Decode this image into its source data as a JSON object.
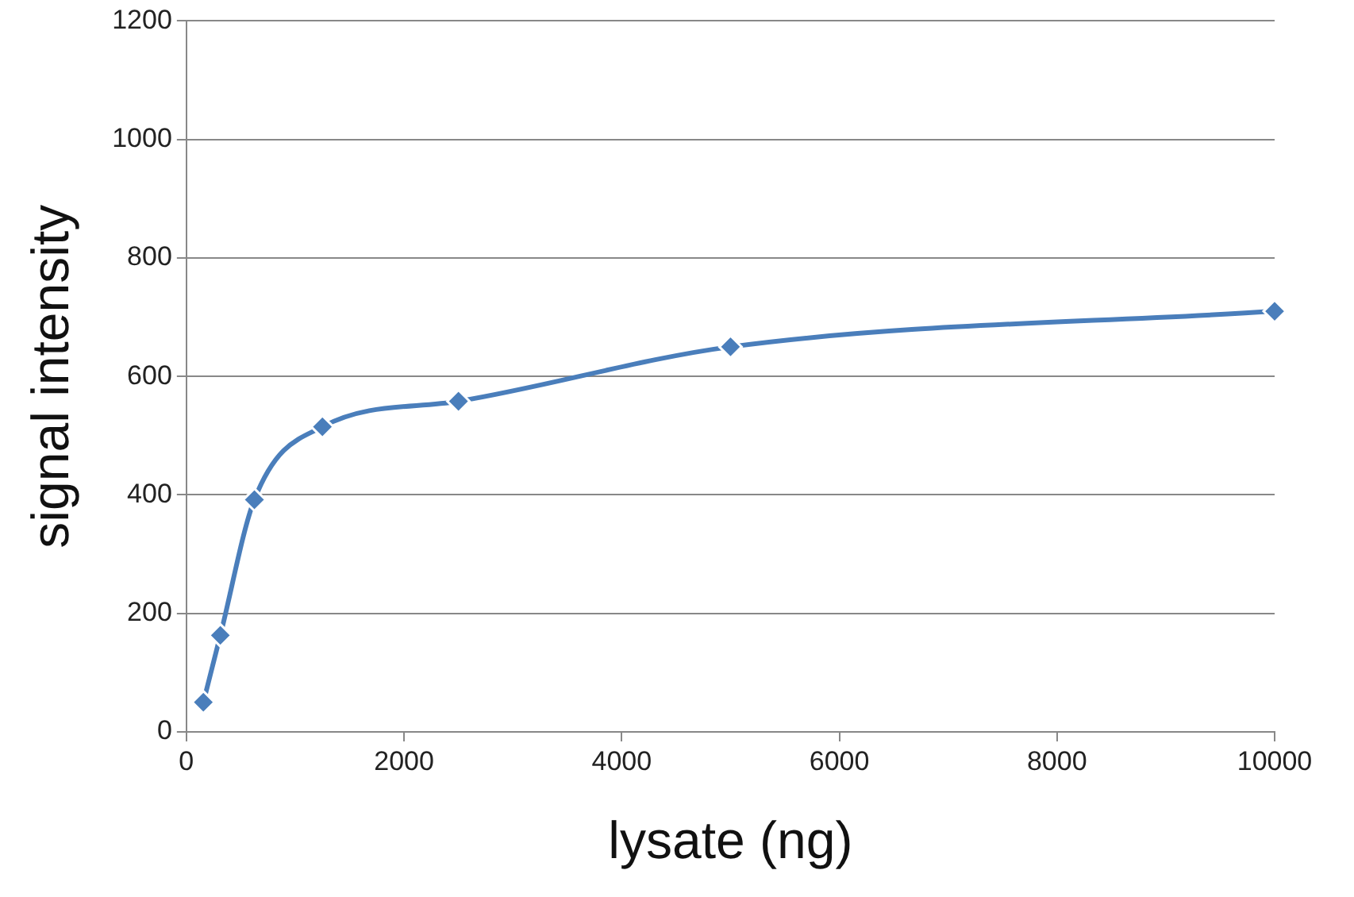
{
  "chart_data": {
    "type": "line",
    "xlabel": "lysate (ng)",
    "ylabel": "signal intensity",
    "x": [
      156,
      312,
      625,
      1250,
      2500,
      5000,
      10000
    ],
    "series": [
      {
        "color": "#4a7ebb",
        "values": [
          50,
          163,
          392,
          515,
          558,
          650,
          710
        ]
      }
    ],
    "xlim": [
      0,
      10000
    ],
    "xticks": [
      0,
      2000,
      4000,
      6000,
      8000,
      10000
    ],
    "ylim": [
      0,
      1200
    ],
    "yticks": [
      0,
      200,
      400,
      600,
      800,
      1000,
      1200
    ],
    "grid": "y",
    "legend": false,
    "marker": "diamond",
    "line_style": "solid"
  }
}
